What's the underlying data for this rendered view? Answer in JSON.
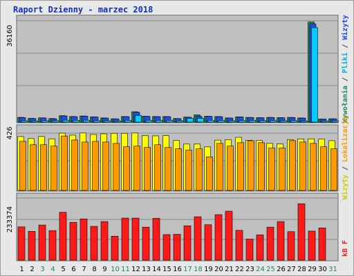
{
  "title": "Raport Dzienny -  marzec 2018",
  "chart_data": [
    {
      "type": "bar",
      "panel": "top",
      "y_tick_label": "36160",
      "categories": [
        "1",
        "2",
        "3",
        "4",
        "5",
        "6",
        "7",
        "8",
        "9",
        "10",
        "11",
        "12",
        "13",
        "14",
        "15",
        "16",
        "17",
        "18",
        "19",
        "20",
        "21",
        "22",
        "23",
        "24",
        "25",
        "26",
        "27",
        "28",
        "29",
        "30",
        "31"
      ],
      "series": [
        {
          "name": "Wywołania",
          "color": "#1e8a5a",
          "values": [
            1700,
            1350,
            1550,
            1300,
            2300,
            2000,
            2200,
            1900,
            1500,
            1200,
            2000,
            3700,
            2100,
            2000,
            2000,
            1300,
            1800,
            2600,
            2100,
            2000,
            1500,
            1900,
            1700,
            1600,
            1700,
            1600,
            1700,
            1500,
            35700,
            1100,
            1200
          ]
        },
        {
          "name": "Wizyty",
          "color": "#1f4fe0",
          "values": [
            1600,
            1300,
            1500,
            1200,
            2200,
            1950,
            2150,
            1850,
            1450,
            1150,
            1950,
            3500,
            2050,
            1950,
            1950,
            1250,
            1750,
            2050,
            2050,
            1950,
            1450,
            1850,
            1650,
            1550,
            1650,
            1550,
            1650,
            1450,
            35000,
            1100,
            1200
          ]
        },
        {
          "name": "Pliki",
          "color": "#00ccff",
          "values": [
            500,
            450,
            550,
            500,
            700,
            650,
            700,
            550,
            500,
            400,
            650,
            2400,
            650,
            600,
            600,
            500,
            1350,
            1350,
            650,
            600,
            500,
            550,
            600,
            550,
            550,
            500,
            550,
            450,
            33700,
            450,
            500
          ]
        }
      ]
    },
    {
      "type": "bar",
      "panel": "middle",
      "y_tick_label": "426",
      "categories": [
        "1",
        "2",
        "3",
        "4",
        "5",
        "6",
        "7",
        "8",
        "9",
        "10",
        "11",
        "12",
        "13",
        "14",
        "15",
        "16",
        "17",
        "18",
        "19",
        "20",
        "21",
        "22",
        "23",
        "24",
        "25",
        "26",
        "27",
        "28",
        "29",
        "30",
        "31"
      ],
      "series": [
        {
          "name": "Lokalizacje",
          "color": "#ff9900",
          "values": [
            365,
            340,
            340,
            330,
            405,
            375,
            360,
            365,
            360,
            350,
            325,
            330,
            320,
            340,
            320,
            310,
            300,
            310,
            250,
            350,
            330,
            355,
            370,
            355,
            315,
            315,
            370,
            360,
            350,
            325,
            310
          ]
        },
        {
          "name": "Wizyty",
          "color": "#ffff00",
          "values": [
            401,
            386,
            401,
            384,
            426,
            411,
            427,
            416,
            421,
            425,
            425,
            427,
            408,
            406,
            407,
            372,
            345,
            345,
            324,
            374,
            377,
            395,
            373,
            373,
            350,
            346,
            378,
            383,
            384,
            382,
            370
          ]
        }
      ]
    },
    {
      "type": "bar",
      "panel": "bottom",
      "y_tick_label": "233374",
      "categories": [
        "1",
        "2",
        "3",
        "4",
        "5",
        "6",
        "7",
        "8",
        "9",
        "10",
        "11",
        "12",
        "13",
        "14",
        "15",
        "16",
        "17",
        "18",
        "19",
        "20",
        "21",
        "22",
        "23",
        "24",
        "25",
        "26",
        "27",
        "28",
        "29",
        "30",
        "31"
      ],
      "series": [
        {
          "name": "kB F",
          "color": "#ff1a1a",
          "values": [
            125000,
            108000,
            132000,
            111000,
            180000,
            142000,
            155000,
            127000,
            145000,
            90000,
            158000,
            158000,
            124000,
            157000,
            96000,
            97000,
            129000,
            163000,
            133000,
            171000,
            184000,
            112000,
            79000,
            95000,
            124000,
            145000,
            107000,
            212000,
            109000,
            121000,
            0
          ]
        }
      ]
    }
  ],
  "x_labels": [
    "1",
    "2",
    "3",
    "4",
    "5",
    "6",
    "7",
    "8",
    "9",
    "10",
    "11",
    "12",
    "13",
    "14",
    "15",
    "16",
    "17",
    "18",
    "19",
    "20",
    "21",
    "22",
    "23",
    "24",
    "25",
    "26",
    "27",
    "28",
    "29",
    "30",
    "31"
  ],
  "weekend_days": [
    "3",
    "4",
    "10",
    "11",
    "17",
    "18",
    "24",
    "25",
    "31"
  ],
  "right_labels": {
    "top": [
      {
        "text": "Wywołania",
        "color": "#1e8a5a"
      },
      {
        "text": " / ",
        "color": "#444444"
      },
      {
        "text": "Pliki",
        "color": "#00aadd"
      },
      {
        "text": " / ",
        "color": "#444444"
      },
      {
        "text": "Wizyty",
        "color": "#2244ee"
      }
    ],
    "middle": [
      {
        "text": "Wizyty",
        "color": "#cccc00"
      },
      {
        "text": " / ",
        "color": "#444444"
      },
      {
        "text": "Lokalizacje",
        "color": "#ff9900"
      }
    ],
    "bottom": [
      {
        "text": "kB F",
        "color": "#ff1a1a"
      }
    ]
  }
}
